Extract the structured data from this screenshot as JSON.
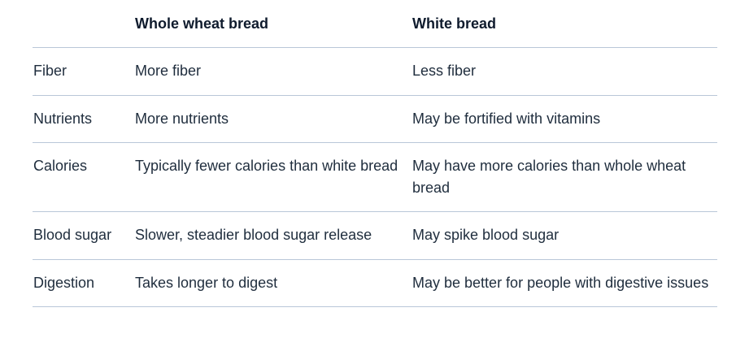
{
  "header": {
    "col1": "",
    "col2": "Whole wheat bread",
    "col3": "White bread"
  },
  "rows": [
    {
      "label": "Fiber",
      "whole_wheat": "More fiber",
      "white": "Less fiber"
    },
    {
      "label": "Nutrients",
      "whole_wheat": "More nutrients",
      "white": "May be fortified with vitamins"
    },
    {
      "label": "Calories",
      "whole_wheat": "Typically fewer calories than white bread",
      "white": "May have more calories than whole wheat bread"
    },
    {
      "label": "Blood sugar",
      "whole_wheat": "Slower, steadier blood sugar release",
      "white": "May spike blood sugar"
    },
    {
      "label": "Digestion",
      "whole_wheat": "Takes longer to digest",
      "white": "May be better for people with digestive issues"
    }
  ]
}
